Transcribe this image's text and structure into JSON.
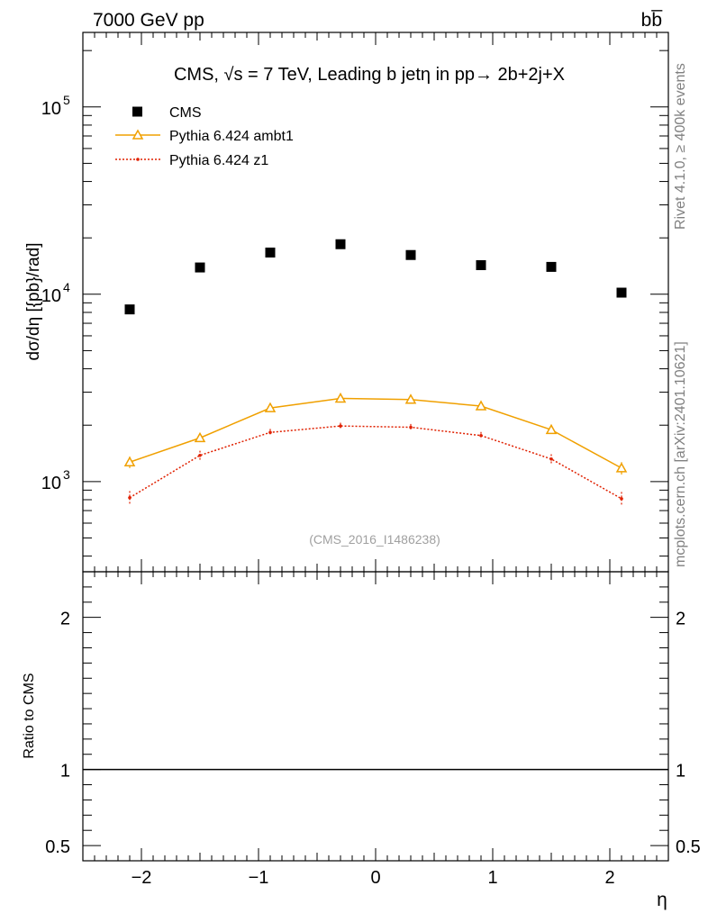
{
  "header": {
    "left": "7000 GeV pp",
    "right": "bb̅"
  },
  "side_labels": {
    "rivet": "Rivet 4.1.0, ≥ 400k events",
    "mcplots": "mcplots.cern.ch [arXiv:2401.10621]"
  },
  "chart_data": [
    {
      "type": "scatter",
      "title": "CMS, √s = 7 TeV, Leading b jetη in pp→  2b+2j+X",
      "ylabel": "dσ/dη [{pb}/rad]",
      "xlabel": "",
      "yscale": "log",
      "xlim": [
        -2.5,
        2.5
      ],
      "ylim": [
        330,
        250000
      ],
      "yticks": [
        1000,
        10000,
        100000
      ],
      "ytick_labels": [
        {
          "base": "10",
          "exp": "3"
        },
        {
          "base": "10",
          "exp": "4"
        },
        {
          "base": "10",
          "exp": "5"
        }
      ],
      "legend_placement": "top-left",
      "watermark": "(CMS_2016_I1486238)",
      "series": [
        {
          "name": "CMS",
          "style": "square-markers",
          "color": "#000000",
          "x": [
            -2.1,
            -1.5,
            -0.9,
            -0.3,
            0.3,
            0.9,
            1.5,
            2.1
          ],
          "y": [
            8300,
            13900,
            16700,
            18500,
            16200,
            14300,
            14000,
            10200
          ]
        },
        {
          "name": "Pythia 6.424 ambt1",
          "style": "solid-line-triangles",
          "color": "#f0a000",
          "x": [
            -2.1,
            -1.5,
            -0.9,
            -0.3,
            0.3,
            0.9,
            1.5,
            2.1
          ],
          "y": [
            1270,
            1710,
            2470,
            2780,
            2740,
            2530,
            1890,
            1180
          ],
          "err": [
            90,
            80,
            100,
            110,
            110,
            100,
            90,
            90
          ]
        },
        {
          "name": "Pythia 6.424 z1",
          "style": "dotted-line-dots",
          "color": "#e02000",
          "x": [
            -2.1,
            -1.5,
            -0.9,
            -0.3,
            0.3,
            0.9,
            1.5,
            2.1
          ],
          "y": [
            820,
            1380,
            1830,
            1980,
            1950,
            1760,
            1320,
            810
          ],
          "err": [
            70,
            80,
            80,
            80,
            80,
            80,
            80,
            70
          ]
        }
      ]
    },
    {
      "type": "line",
      "ylabel": "Ratio to CMS",
      "xlabel": "η",
      "xlim": [
        -2.5,
        2.5
      ],
      "ylim": [
        0.4,
        2.3
      ],
      "xticks": [
        -2,
        -1,
        0,
        1,
        2
      ],
      "xtick_labels": [
        "−2",
        "−1",
        "0",
        "1",
        "2"
      ],
      "yticks": [
        0.5,
        1,
        2
      ],
      "ytick_labels": [
        "0.5",
        "1",
        "2"
      ],
      "reference_line": 1
    }
  ]
}
